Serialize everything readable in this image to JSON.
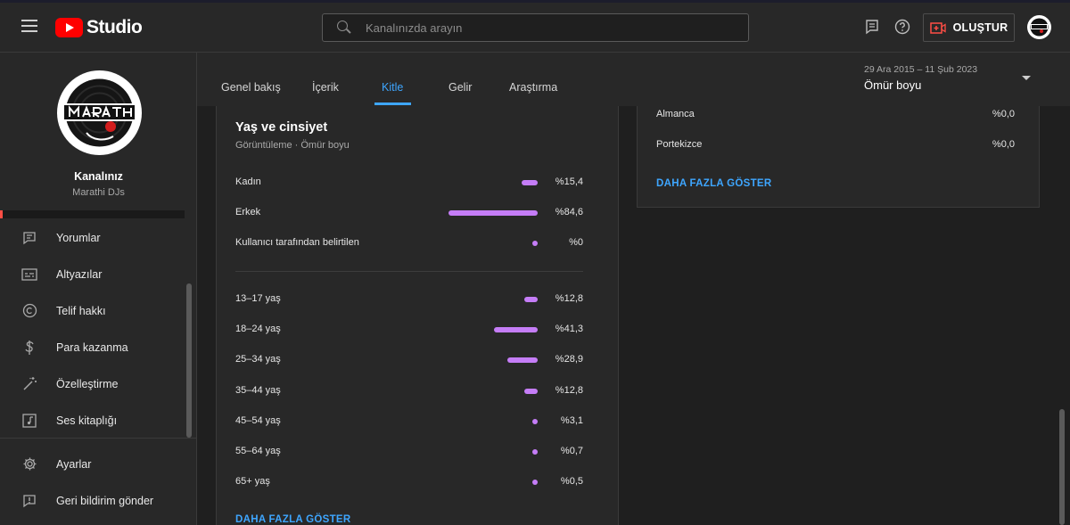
{
  "header": {
    "logo_text": "Studio",
    "search_placeholder": "Kanalınızda arayın",
    "create_label": "OLUŞTUR"
  },
  "sidebar": {
    "channel_title": "Kanalınız",
    "channel_name": "Marathi DJs",
    "items": [
      {
        "label": "Yorumlar",
        "icon": "comments-icon"
      },
      {
        "label": "Altyazılar",
        "icon": "subtitles-icon"
      },
      {
        "label": "Telif hakkı",
        "icon": "copyright-icon"
      },
      {
        "label": "Para kazanma",
        "icon": "dollar-icon"
      },
      {
        "label": "Özelleştirme",
        "icon": "magic-wand-icon"
      },
      {
        "label": "Ses kitaplığı",
        "icon": "music-note-icon"
      }
    ],
    "bottom_items": [
      {
        "label": "Ayarlar",
        "icon": "gear-icon"
      },
      {
        "label": "Geri bildirim gönder",
        "icon": "feedback-icon"
      }
    ]
  },
  "tabs": [
    {
      "label": "Genel bakış"
    },
    {
      "label": "İçerik"
    },
    {
      "label": "Kitle"
    },
    {
      "label": "Gelir"
    },
    {
      "label": "Araştırma"
    }
  ],
  "active_tab": "Kitle",
  "date_filter": {
    "range": "29 Ara 2015 – 11 Şub 2023",
    "period": "Ömür boyu"
  },
  "age_gender": {
    "title": "Yaş ve cinsiyet",
    "subtitle": "Görüntüleme · Ömür boyu",
    "bar_color": "#c57df7",
    "gender": [
      {
        "label": "Kadın",
        "pct_text": "%15,4",
        "value": 15.4
      },
      {
        "label": "Erkek",
        "pct_text": "%84,6",
        "value": 84.6
      },
      {
        "label": "Kullanıcı tarafından belirtilen",
        "pct_text": "%0",
        "value": 0
      }
    ],
    "age": [
      {
        "label": "13–17 yaş",
        "pct_text": "%12,8",
        "value": 12.8
      },
      {
        "label": "18–24 yaş",
        "pct_text": "%41,3",
        "value": 41.3
      },
      {
        "label": "25–34 yaş",
        "pct_text": "%28,9",
        "value": 28.9
      },
      {
        "label": "35–44 yaş",
        "pct_text": "%12,8",
        "value": 12.8
      },
      {
        "label": "45–54 yaş",
        "pct_text": "%3,1",
        "value": 3.1
      },
      {
        "label": "55–64 yaş",
        "pct_text": "%0,7",
        "value": 0.7
      },
      {
        "label": "65+ yaş",
        "pct_text": "%0,5",
        "value": 0.5
      }
    ],
    "show_more": "DAHA FAZLA GÖSTER"
  },
  "languages": {
    "rows": [
      {
        "label": "Almanca",
        "pct_text": "%0,0"
      },
      {
        "label": "Portekizce",
        "pct_text": "%0,0"
      }
    ],
    "show_more": "DAHA FAZLA GÖSTER"
  }
}
